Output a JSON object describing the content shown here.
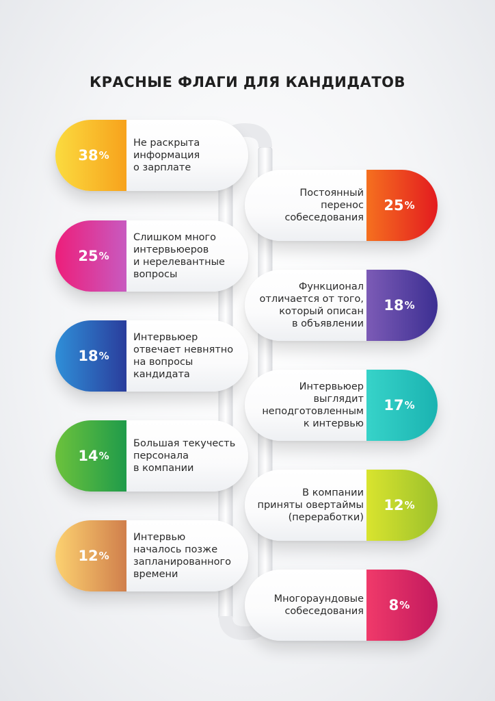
{
  "title": "КРАСНЫЕ ФЛАГИ ДЛЯ КАНДИДАТОВ",
  "items": [
    {
      "side": "left",
      "value": 38,
      "text": "Не раскрыта информация о зарплате",
      "lines": [
        "Не раскрыта",
        "информация",
        "о зарплате"
      ],
      "colors": [
        "#fbdb3f",
        "#f7a21c"
      ]
    },
    {
      "side": "right",
      "value": 25,
      "text": "Постоянный перенос собеседования",
      "lines": [
        "Постоянный",
        "перенос",
        "собеседования"
      ],
      "colors": [
        "#e31b1f",
        "#f5701f"
      ]
    },
    {
      "side": "left",
      "value": 25,
      "text": "Слишком много интервьюеров и нерелевантные вопросы",
      "lines": [
        "Слишком много",
        "интервьюеров",
        "и нерелевантные",
        "вопросы"
      ],
      "colors": [
        "#ed1e7a",
        "#c85ac0"
      ]
    },
    {
      "side": "right",
      "value": 18,
      "text": "Функционал отличается от того, который описан в объявлении",
      "lines": [
        "Функционал",
        "отличается от того,",
        "который описан",
        "в объявлении"
      ],
      "colors": [
        "#3c2f92",
        "#7c5bb6"
      ]
    },
    {
      "side": "left",
      "value": 18,
      "text": "Интервьюер отвечает невнятно на вопросы кандидата",
      "lines": [
        "Интервьюер",
        "отвечает невнятно",
        "на вопросы",
        "кандидата"
      ],
      "colors": [
        "#2f8fd8",
        "#2a3d9c"
      ]
    },
    {
      "side": "right",
      "value": 17,
      "text": "Интервьюер выглядит неподготовленным к интервью",
      "lines": [
        "Интервьюер",
        "выглядит",
        "неподготовленным",
        "к интервью"
      ],
      "colors": [
        "#1ab3b1",
        "#37d3c9"
      ]
    },
    {
      "side": "left",
      "value": 14,
      "text": "Большая текучесть персонала в компании",
      "lines": [
        "Большая текучесть",
        "персонала",
        "в компании"
      ],
      "colors": [
        "#6cc23c",
        "#1f9b4a"
      ]
    },
    {
      "side": "right",
      "value": 12,
      "text": "В компании приняты овертаймы (переработки)",
      "lines": [
        "В компании",
        "приняты овертаймы",
        "(переработки)"
      ],
      "colors": [
        "#9cc12c",
        "#d9e42e"
      ]
    },
    {
      "side": "left",
      "value": 12,
      "text": "Интервью началось позже запланированного времени",
      "lines": [
        "Интервью",
        "началось позже",
        "запланированного",
        "времени"
      ],
      "colors": [
        "#fcd170",
        "#d07f4c"
      ]
    },
    {
      "side": "right",
      "value": 8,
      "text": "Многораундовые собеседования",
      "lines": [
        "Многораундовые",
        "собеседования"
      ],
      "colors": [
        "#c2195e",
        "#f03a6a"
      ]
    }
  ],
  "percent_symbol": "%"
}
